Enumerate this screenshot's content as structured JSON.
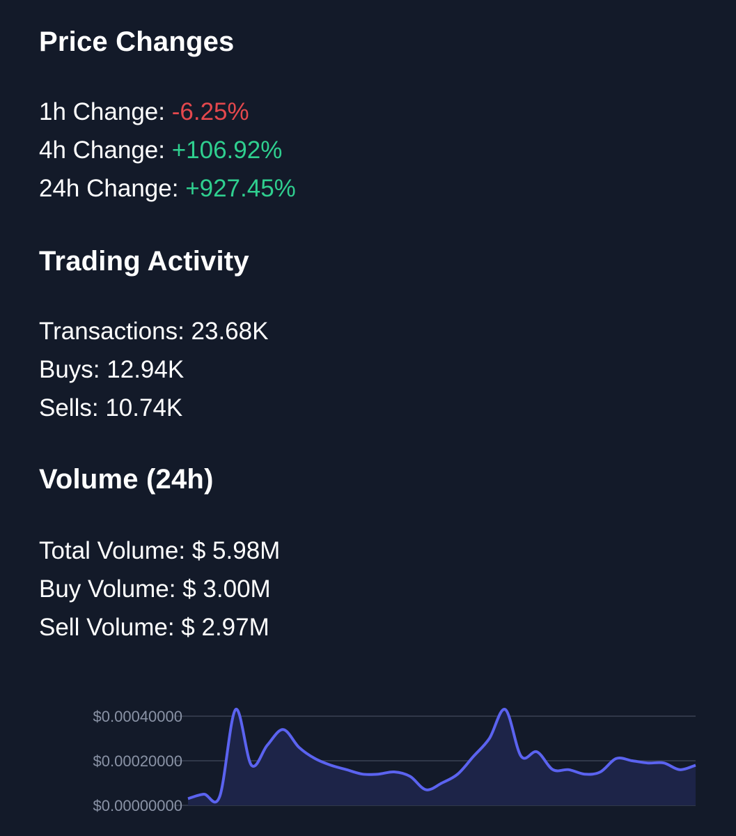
{
  "price_changes": {
    "title": "Price Changes",
    "rows": [
      {
        "label": "1h Change:",
        "value": "-6.25%"
      },
      {
        "label": "4h Change:",
        "value": "+106.92%"
      },
      {
        "label": "24h Change:",
        "value": "+927.45%"
      }
    ]
  },
  "trading_activity": {
    "title": "Trading Activity",
    "rows": [
      {
        "label": "Transactions:",
        "value": "23.68K"
      },
      {
        "label": "Buys:",
        "value": "12.94K"
      },
      {
        "label": "Sells:",
        "value": "10.74K"
      }
    ]
  },
  "volume": {
    "title": "Volume (24h)",
    "rows": [
      {
        "label": "Total Volume:",
        "value": "$ 5.98M"
      },
      {
        "label": "Buy Volume:",
        "value": "$ 3.00M"
      },
      {
        "label": "Sell Volume:",
        "value": "$ 2.97M"
      }
    ]
  },
  "colors": {
    "background": "#131a29",
    "negative": "#e5484d",
    "positive": "#2fcf8f",
    "line": "#5b63f0",
    "area": "#1d2448",
    "grid": "#3a4254",
    "tick_label": "#8a93a6"
  },
  "chart_data": {
    "type": "area",
    "title": "",
    "xlabel": "",
    "ylabel": "",
    "ylim": [
      0,
      0.0004
    ],
    "y_ticks": [
      "$0.00000000",
      "$0.00020000",
      "$0.00040000"
    ],
    "y_tick_values": [
      0,
      0.0002,
      0.0004
    ],
    "grid": true,
    "series": [
      {
        "values": [
          3e-05,
          5e-05,
          4e-05,
          0.00043,
          0.00018,
          0.00027,
          0.00034,
          0.00026,
          0.00021,
          0.00018,
          0.00016,
          0.00014,
          0.00014,
          0.00015,
          0.00013,
          7e-05,
          0.0001,
          0.00014,
          0.00022,
          0.0003,
          0.00043,
          0.00022,
          0.00024,
          0.00016,
          0.00016,
          0.00014,
          0.00015,
          0.00021,
          0.0002,
          0.00019,
          0.00019,
          0.00016,
          0.00018
        ]
      }
    ]
  }
}
